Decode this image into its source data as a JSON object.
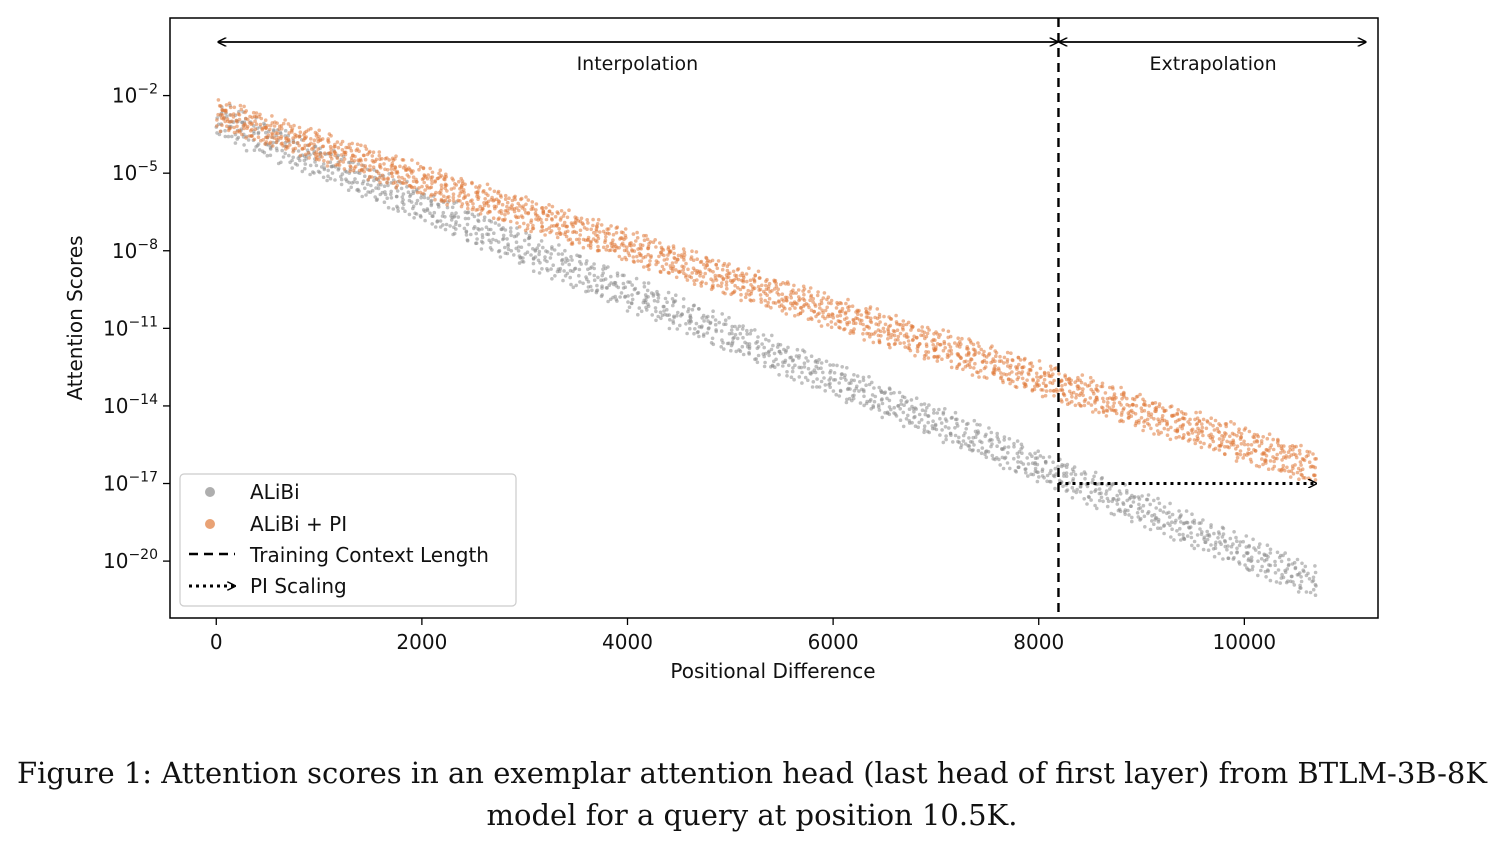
{
  "chart_data": {
    "type": "scatter",
    "xlabel": "Positional Difference",
    "ylabel": "Attention Scores",
    "xlim": [
      -450,
      11300
    ],
    "ylim": [
      -22.2,
      1.0
    ],
    "y_scale": "log",
    "x_ticks": [
      0,
      2000,
      4000,
      6000,
      8000,
      10000
    ],
    "y_ticks": [
      {
        "base": "10",
        "exp": "−2",
        "value": -2
      },
      {
        "base": "10",
        "exp": "−5",
        "value": -5
      },
      {
        "base": "10",
        "exp": "−8",
        "value": -8
      },
      {
        "base": "10",
        "exp": "−11",
        "value": -11
      },
      {
        "base": "10",
        "exp": "−14",
        "value": -14
      },
      {
        "base": "10",
        "exp": "−17",
        "value": -17
      },
      {
        "base": "10",
        "exp": "−20",
        "value": -20
      }
    ],
    "series": [
      {
        "name": "ALiBi",
        "color": "#8c8c8c",
        "x_range": [
          0,
          10700
        ],
        "log10_y_start": [
          -2.3,
          -3.5
        ],
        "log10_y_end": [
          -20.3,
          -21.4
        ]
      },
      {
        "name": "ALiBi + PI",
        "color": "#e07a3a",
        "x_range": [
          0,
          10700
        ],
        "log10_y_start": [
          -2.2,
          -3.2
        ],
        "log10_y_end": [
          -15.8,
          -17.0
        ]
      }
    ],
    "training_context_length": 8192,
    "pi_scaling_arrow": {
      "x_from": 8192,
      "x_to": 10700,
      "log10_y": -17.0
    },
    "annotations": [
      {
        "text": "Interpolation",
        "x_from": 0,
        "x_to": 8192
      },
      {
        "text": "Extrapolation",
        "x_from": 8192,
        "x_to": 11200
      }
    ],
    "legend": {
      "placement": "lower-left",
      "entries": [
        "ALiBi",
        "ALiBi + PI",
        "Training Context Length",
        "PI Scaling"
      ]
    },
    "grid": false
  },
  "caption": {
    "line1": "Figure 1: Attention scores in an exemplar attention head (last head of first layer) from BTLM-3B-8K",
    "line2": "model for a query at position 10.5K."
  }
}
